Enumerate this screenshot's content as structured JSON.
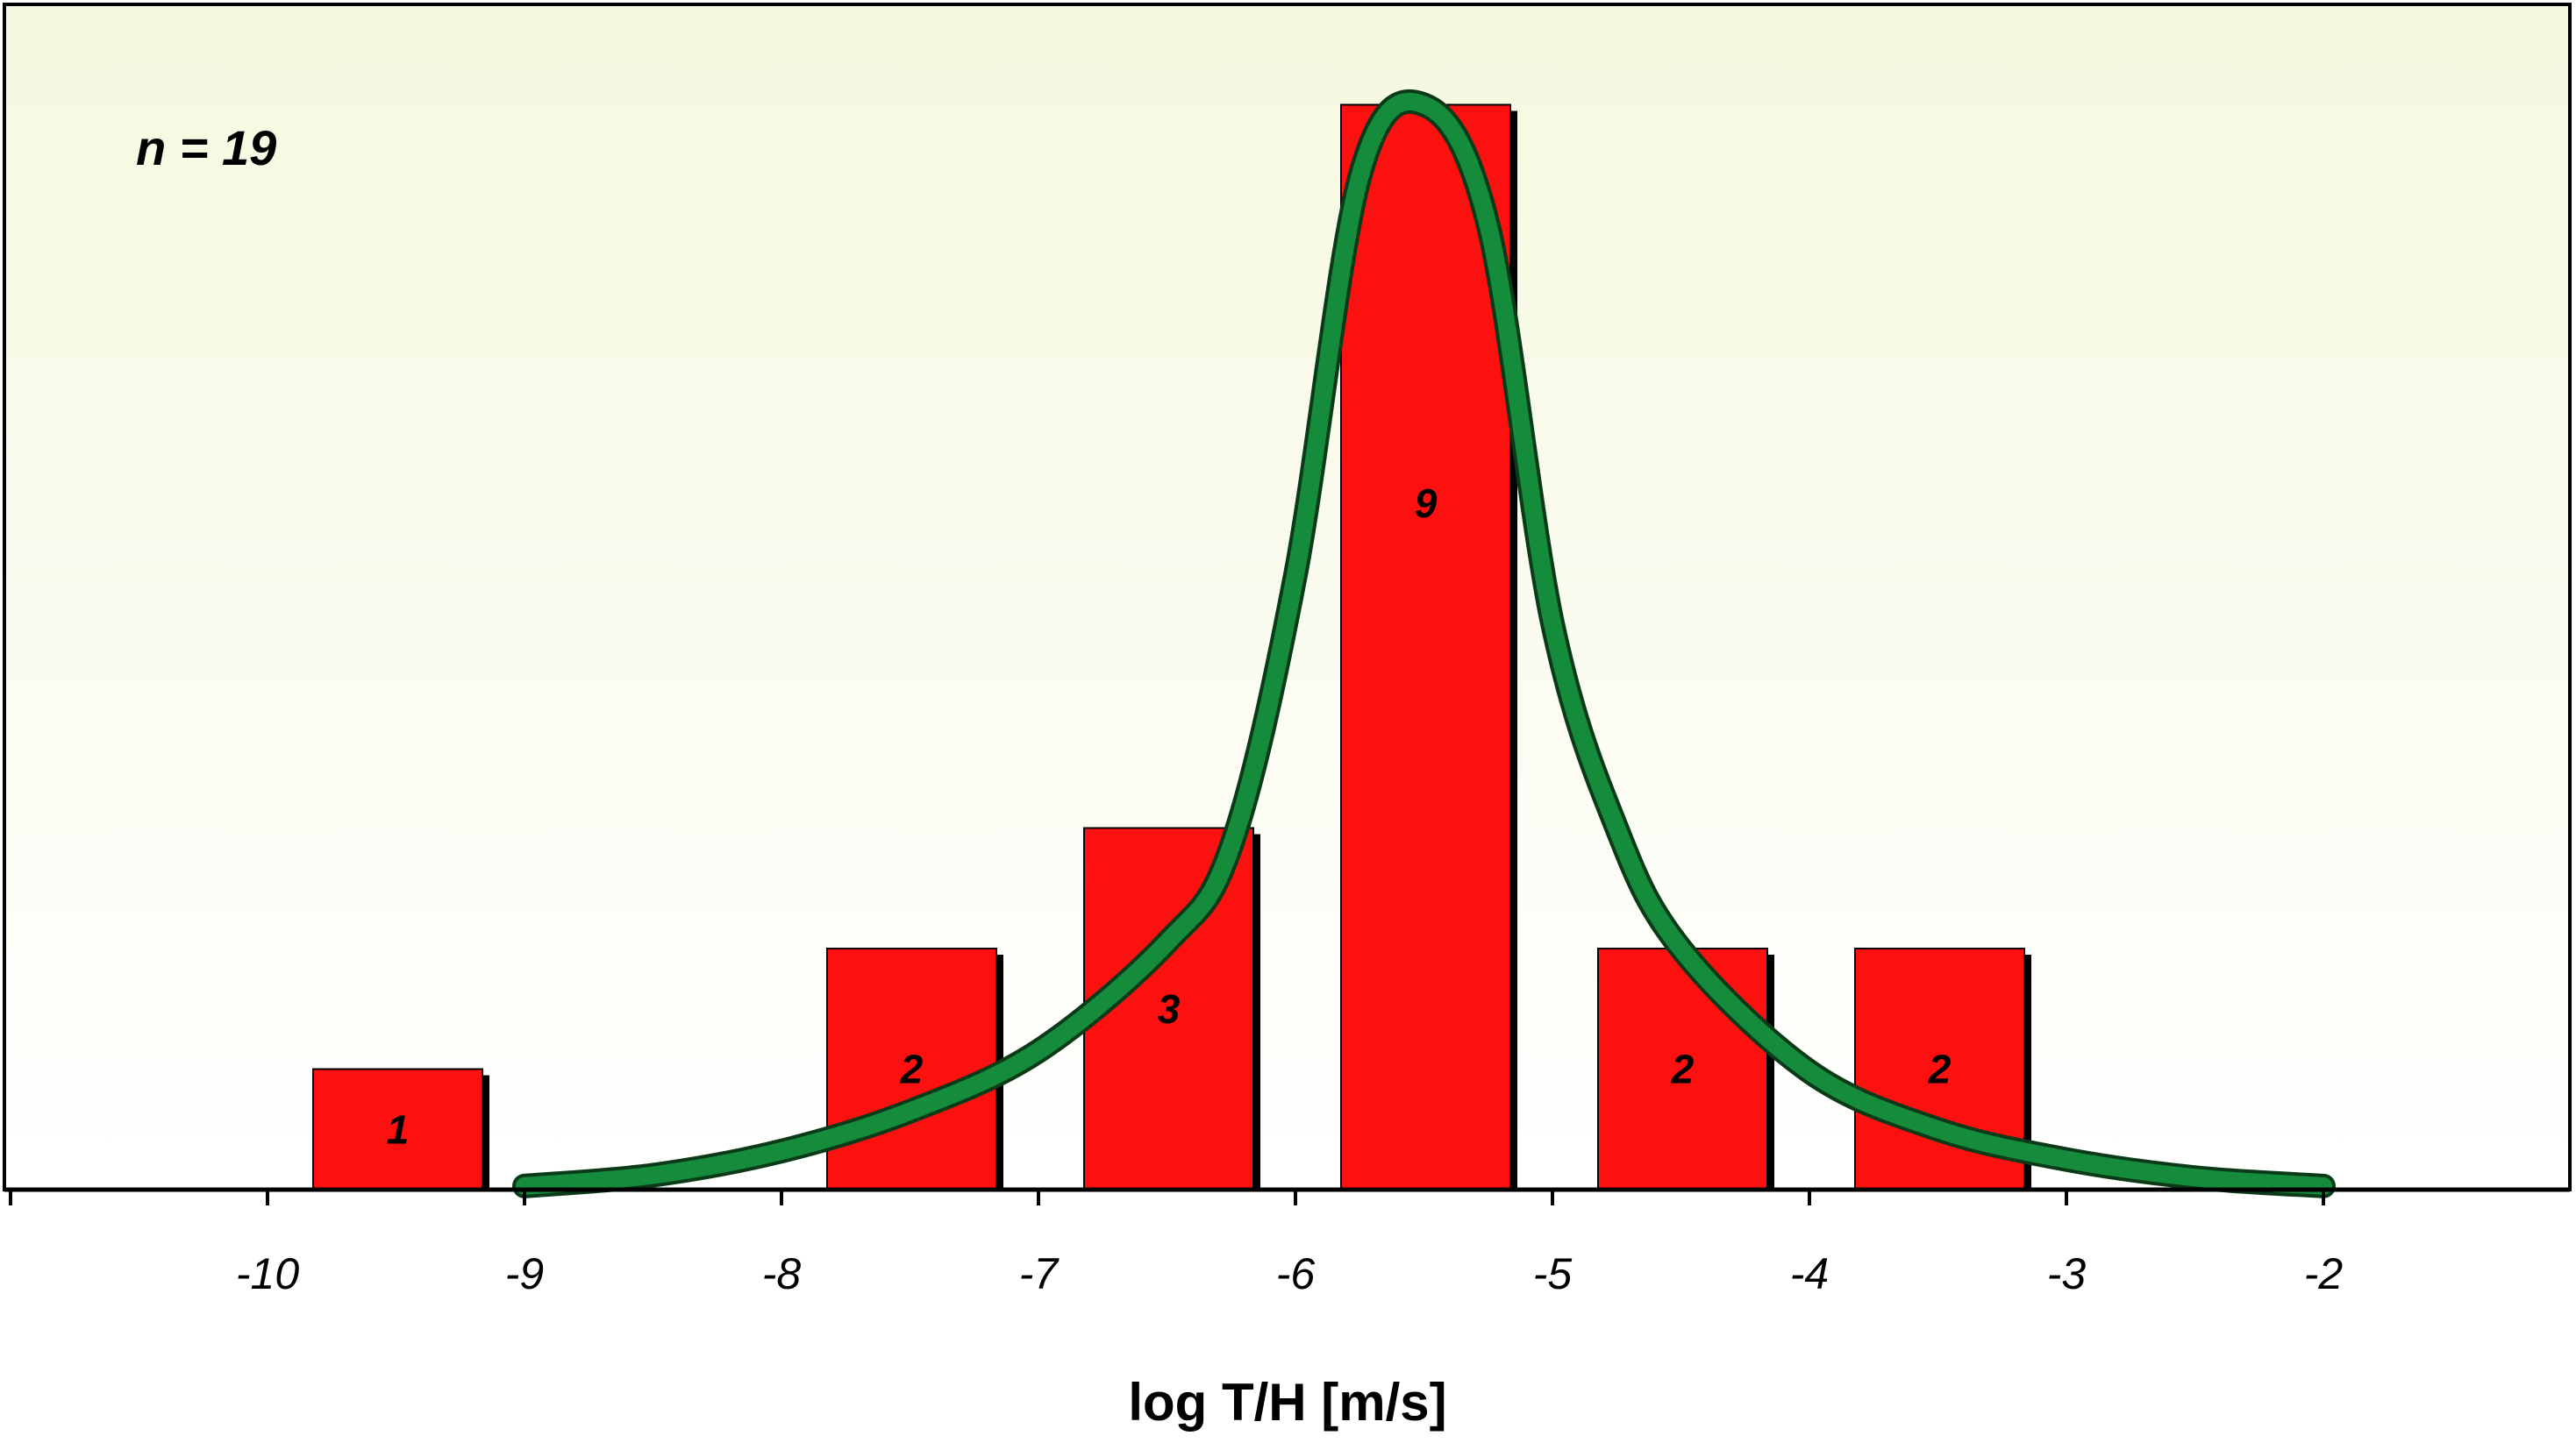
{
  "chart_data": {
    "type": "bar",
    "annotation": "n = 19",
    "xlabel": "log T/H [m/s]",
    "ylabel": "",
    "xlim": [
      -11,
      -1
    ],
    "ylim": [
      0,
      9.1
    ],
    "xticks": [
      -11,
      -10,
      -9,
      -8,
      -7,
      -6,
      -5,
      -4,
      -3,
      -2,
      -1
    ],
    "xtick_labels": [
      "",
      "-10",
      "-9",
      "-8",
      "-7",
      "-6",
      "-5",
      "-4",
      "-3",
      "-2",
      ""
    ],
    "bars": [
      {
        "from": -10,
        "to": -9,
        "value": 1,
        "label": "1"
      },
      {
        "from": -8,
        "to": -7,
        "value": 2,
        "label": "2"
      },
      {
        "from": -7,
        "to": -6,
        "value": 3,
        "label": "3"
      },
      {
        "from": -6,
        "to": -5,
        "value": 9,
        "label": "9"
      },
      {
        "from": -5,
        "to": -4,
        "value": 2,
        "label": "2"
      },
      {
        "from": -4,
        "to": -3,
        "value": 2,
        "label": "2"
      }
    ],
    "curve": {
      "type": "line",
      "x": [
        -9,
        -8.5,
        -8,
        -7.5,
        -7,
        -6.5,
        -6.25,
        -6,
        -5.75,
        -5.5,
        -5.25,
        -5,
        -4.75,
        -4.5,
        -4,
        -3.5,
        -3,
        -2.5,
        -2
      ],
      "y": [
        0.03,
        0.12,
        0.32,
        0.65,
        1.15,
        2.05,
        2.85,
        5.1,
        8.4,
        9.0,
        8.0,
        4.7,
        3.0,
        2.0,
        0.98,
        0.5,
        0.25,
        0.1,
        0.03
      ]
    },
    "colors": {
      "bar_fill": "#fc1010",
      "bar_shadow": "#000000",
      "curve": "#148c3c",
      "curve_outline": "#0a3a18",
      "background_top": "#f6f8df",
      "background_bottom": "#ffffff"
    },
    "grid": false,
    "legend": "none"
  }
}
